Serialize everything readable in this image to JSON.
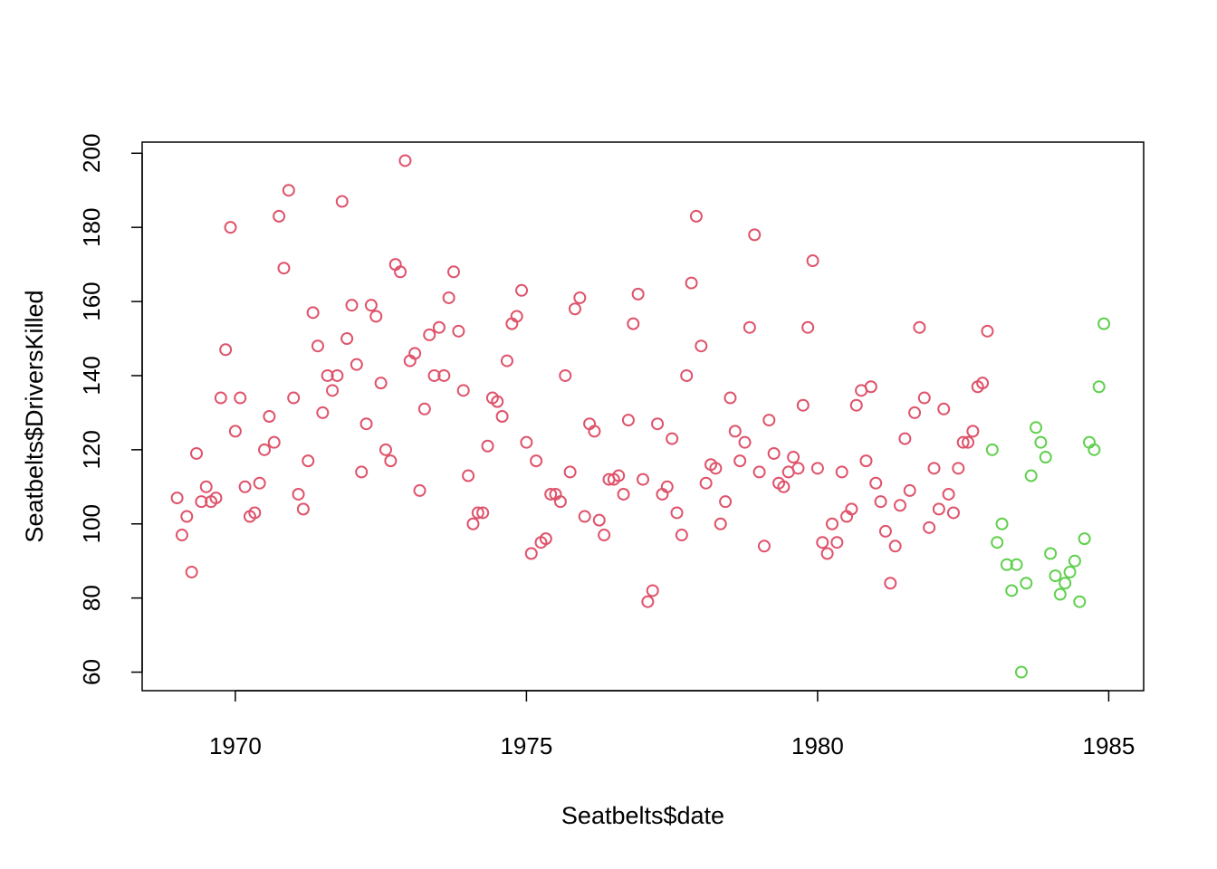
{
  "chart_data": {
    "type": "scatter",
    "xlabel": "Seatbelts$date",
    "ylabel": "Seatbelts$DriversKilled",
    "xlim": [
      1968.4,
      1985.6
    ],
    "ylim": [
      55,
      203
    ],
    "xticks": [
      1970,
      1975,
      1980,
      1985
    ],
    "yticks": [
      60,
      80,
      100,
      120,
      140,
      160,
      180,
      200
    ],
    "grid": false,
    "legend": "none",
    "series": [
      {
        "color": "#DF536B",
        "x_start": 1969.0,
        "x_step": 0.0833333,
        "y": [
          107,
          97,
          102,
          87,
          119,
          106,
          110,
          106,
          107,
          134,
          147,
          180,
          125,
          134,
          110,
          102,
          103,
          111,
          120,
          129,
          122,
          183,
          169,
          190,
          134,
          108,
          104,
          117,
          157,
          148,
          130,
          140,
          136,
          140,
          187,
          150,
          159,
          143,
          114,
          127,
          159,
          156,
          138,
          120,
          117,
          170,
          168,
          198,
          144,
          146,
          109,
          131,
          151,
          140,
          153,
          140,
          161,
          168,
          152,
          136,
          113,
          100,
          103,
          103,
          121,
          134,
          133,
          129,
          144,
          154,
          156,
          163,
          122,
          92,
          117,
          95,
          96,
          108,
          108,
          106,
          140,
          114,
          158,
          161,
          102,
          127,
          125,
          101,
          97,
          112,
          112,
          113,
          108,
          128,
          154,
          162,
          112,
          79,
          82,
          127,
          108,
          110,
          123,
          103,
          97,
          140,
          165,
          183,
          148,
          111,
          116,
          115,
          100,
          106,
          134,
          125,
          117,
          122,
          153,
          178,
          114,
          94,
          128,
          119,
          111,
          110,
          114,
          118,
          115,
          132,
          153,
          171,
          115,
          95,
          92,
          100,
          95,
          114,
          102,
          104,
          132,
          136,
          117,
          137,
          111,
          106,
          98,
          84,
          94,
          105,
          123,
          109,
          130,
          153,
          134,
          99,
          115,
          104,
          131,
          108,
          103,
          115,
          122,
          122,
          125,
          137,
          138,
          152
        ]
      },
      {
        "color": "#61D04F",
        "x_start": 1983.0,
        "x_step": 0.0833333,
        "y": [
          120,
          95,
          100,
          89,
          82,
          89,
          60,
          84,
          113,
          126,
          122,
          118,
          92,
          86,
          81,
          84,
          87,
          90,
          79,
          96,
          122,
          120,
          137,
          154
        ]
      }
    ]
  }
}
